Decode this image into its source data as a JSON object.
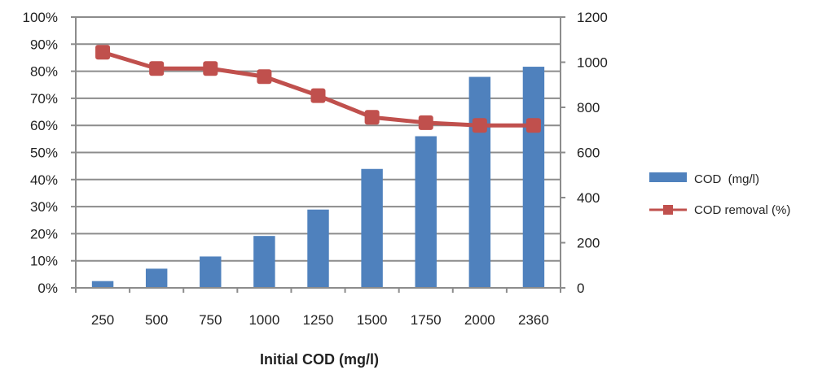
{
  "chart_data": {
    "type": "bar+line",
    "categories": [
      "250",
      "500",
      "750",
      "1000",
      "1250",
      "1500",
      "1750",
      "2000",
      "2360"
    ],
    "xlabel": "Initial COD (mg/l)",
    "y_left": {
      "ticks": [
        "0%",
        "10%",
        "20%",
        "30%",
        "40%",
        "50%",
        "60%",
        "70%",
        "80%",
        "90%",
        "100%"
      ],
      "ylim": [
        0,
        100
      ]
    },
    "y_right": {
      "ticks": [
        "0",
        "200",
        "400",
        "600",
        "800",
        "1000",
        "1200"
      ],
      "ylim": [
        0,
        1200
      ]
    },
    "grid": true,
    "legend_position": "right",
    "series": [
      {
        "name": "COD  (mg/l)",
        "type": "bar",
        "axis": "right",
        "color": "#4f81bd",
        "values": [
          30,
          85,
          139,
          230,
          347,
          527,
          672,
          935,
          980
        ]
      },
      {
        "name": "COD removal (%)",
        "type": "line",
        "axis": "left",
        "color": "#c0504d",
        "marker": "square",
        "values": [
          87,
          81,
          81,
          78,
          71,
          63,
          61,
          60,
          60
        ]
      }
    ]
  }
}
